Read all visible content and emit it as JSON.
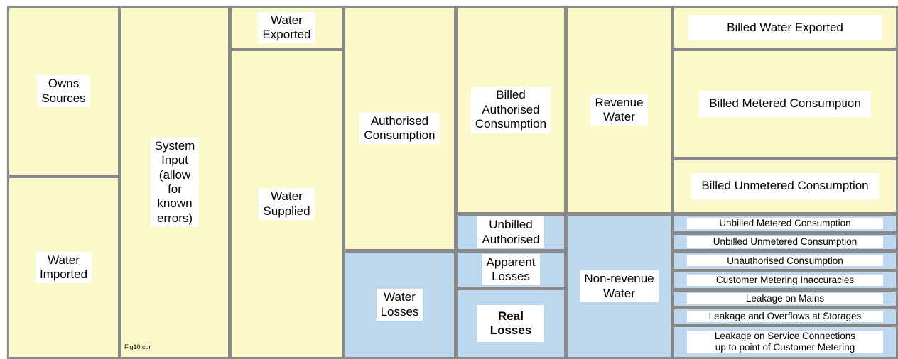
{
  "cells": [
    {
      "lines": [
        "Owns",
        "Sources"
      ]
    },
    {
      "lines": [
        "Water",
        "Imported"
      ]
    },
    {
      "lines": [
        "System",
        "Input",
        "(allow",
        "for",
        "known",
        "errors)"
      ]
    },
    {
      "lines": [
        "Water",
        "Exported"
      ]
    },
    {
      "lines": [
        "Water",
        "Supplied"
      ]
    },
    {
      "lines": [
        "Authorised",
        "Consumption"
      ]
    },
    {
      "lines": [
        "Water",
        "Losses"
      ]
    },
    {
      "lines": [
        "Billed",
        "Authorised",
        "Consumption"
      ]
    },
    {
      "lines": [
        "Unbilled",
        "Authorised"
      ]
    },
    {
      "lines": [
        "Apparent",
        "Losses"
      ]
    },
    {
      "lines": [
        "Real",
        "Losses"
      ]
    },
    {
      "lines": [
        "Revenue",
        "Water"
      ]
    },
    {
      "lines": [
        "Non-revenue",
        "Water"
      ]
    },
    {
      "lines": [
        "Billed Water Exported"
      ]
    },
    {
      "lines": [
        "Billed Metered Consumption"
      ]
    },
    {
      "lines": [
        "Billed Unmetered Consumption"
      ]
    },
    {
      "lines": [
        "Unbilled Metered Consumption"
      ]
    },
    {
      "lines": [
        "Unbilled Unmetered Consumption"
      ]
    },
    {
      "lines": [
        "Unauthorised Consumption"
      ]
    },
    {
      "lines": [
        "Customer Metering Inaccuracies"
      ]
    },
    {
      "lines": [
        "Leakage on Mains"
      ]
    },
    {
      "lines": [
        "Leakage and Overflows at Storages"
      ]
    },
    {
      "lines": [
        "Leakage on Service Connections",
        "up to point of Customer Metering"
      ]
    }
  ],
  "figure_id": "Fig10.cdr"
}
